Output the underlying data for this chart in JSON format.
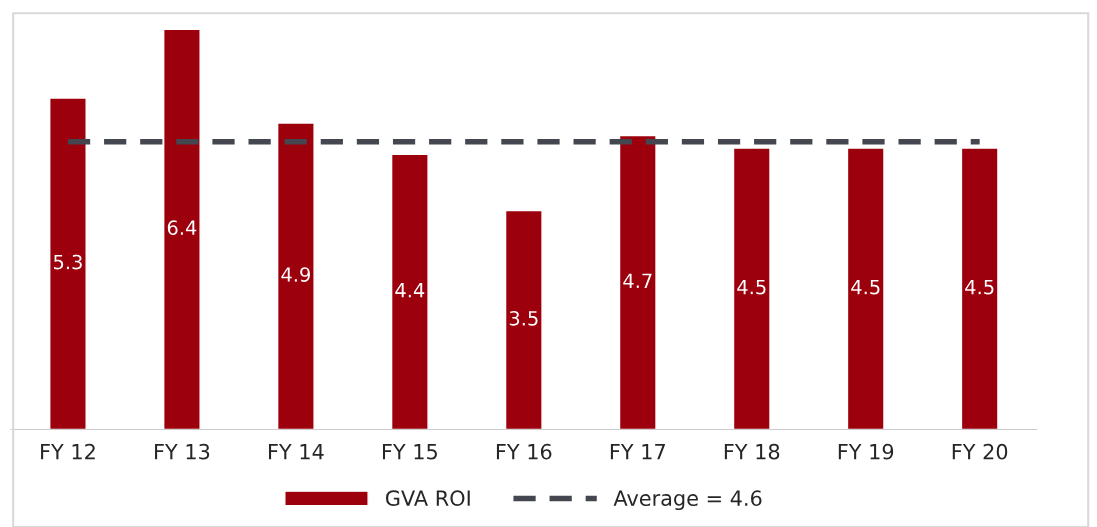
{
  "chart_data": {
    "type": "bar",
    "categories": [
      "FY 12",
      "FY 13",
      "FY 14",
      "FY 15",
      "FY 16",
      "FY 17",
      "FY 18",
      "FY 19",
      "FY 20"
    ],
    "series": [
      {
        "name": "GVA ROI",
        "color": "#9c000c",
        "values": [
          5.3,
          6.4,
          4.9,
          4.4,
          3.5,
          4.7,
          4.5,
          4.5,
          4.5
        ],
        "value_labels": [
          "5.3",
          "6.4",
          "4.9",
          "4.4",
          "3.5",
          "4.7",
          "4.5",
          "4.5",
          "4.5"
        ]
      },
      {
        "name": "Average = 4.6",
        "type": "line",
        "color": "#44474f",
        "line_style": "dashed",
        "values": [
          4.6,
          4.6,
          4.6,
          4.6,
          4.6,
          4.6,
          4.6,
          4.6,
          4.6
        ]
      }
    ],
    "legend": "bottom",
    "grid": false,
    "tick_labels": "x"
  }
}
